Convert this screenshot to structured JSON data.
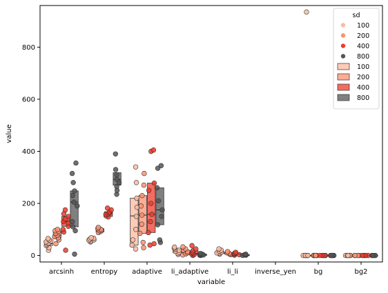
{
  "chart_data": {
    "type": "boxplot",
    "xlabel": "variable",
    "ylabel": "value",
    "ylim": [
      -25,
      960
    ],
    "yticks": [
      0,
      200,
      400,
      600,
      800
    ],
    "categories": [
      "arcsinh",
      "entropy",
      "adaptive",
      "li_adaptive",
      "li_li",
      "inverse_yen",
      "bg",
      "bg2"
    ],
    "hue_levels": [
      "100",
      "200",
      "400",
      "800"
    ],
    "colors": {
      "100": "#fcbba1",
      "200": "#fc9272",
      "400": "#ef3b2c",
      "800": "#555555"
    },
    "legend": {
      "title": "sd",
      "placement": "upper right",
      "point_entries": [
        "100",
        "200",
        "400",
        "800"
      ],
      "box_entries": [
        "100",
        "200",
        "400",
        "800"
      ]
    },
    "boxes": [
      {
        "category": "arcsinh",
        "hue": "100",
        "q1": 38,
        "median": 45,
        "q3": 55,
        "min": 20,
        "max": 65
      },
      {
        "category": "arcsinh",
        "hue": "200",
        "q1": 68,
        "median": 78,
        "q3": 92,
        "min": 45,
        "max": 100
      },
      {
        "category": "arcsinh",
        "hue": "400",
        "q1": 112,
        "median": 130,
        "q3": 150,
        "min": 90,
        "max": 175
      },
      {
        "category": "arcsinh",
        "hue": "800",
        "q1": 110,
        "median": 205,
        "q3": 248,
        "min": 5,
        "max": 355
      },
      {
        "category": "entropy",
        "hue": "100",
        "q1": 55,
        "median": 60,
        "q3": 66,
        "min": 52,
        "max": 68
      },
      {
        "category": "entropy",
        "hue": "200",
        "q1": 90,
        "median": 97,
        "q3": 103,
        "min": 88,
        "max": 108
      },
      {
        "category": "entropy",
        "hue": "400",
        "q1": 150,
        "median": 160,
        "q3": 168,
        "min": 148,
        "max": 182
      },
      {
        "category": "entropy",
        "hue": "800",
        "q1": 270,
        "median": 292,
        "q3": 318,
        "min": 235,
        "max": 390
      },
      {
        "category": "adaptive",
        "hue": "100",
        "q1": 40,
        "median": 152,
        "q3": 220,
        "min": 25,
        "max": 340
      },
      {
        "category": "adaptive",
        "hue": "200",
        "q1": 85,
        "median": 155,
        "q3": 230,
        "min": 30,
        "max": 315
      },
      {
        "category": "adaptive",
        "hue": "400",
        "q1": 88,
        "median": 158,
        "q3": 278,
        "min": 40,
        "max": 405
      },
      {
        "category": "adaptive",
        "hue": "800",
        "q1": 118,
        "median": 175,
        "q3": 260,
        "min": 50,
        "max": 345
      },
      {
        "category": "li_adaptive",
        "hue": "100",
        "q1": 10,
        "median": 16,
        "q3": 24,
        "min": 4,
        "max": 32
      },
      {
        "category": "li_adaptive",
        "hue": "200",
        "q1": 6,
        "median": 12,
        "q3": 20,
        "min": 2,
        "max": 33
      },
      {
        "category": "li_adaptive",
        "hue": "400",
        "q1": 3,
        "median": 8,
        "q3": 18,
        "min": 0,
        "max": 38
      },
      {
        "category": "li_adaptive",
        "hue": "800",
        "q1": 0,
        "median": 2,
        "q3": 5,
        "min": 0,
        "max": 8
      },
      {
        "category": "li_li",
        "hue": "100",
        "q1": 8,
        "median": 12,
        "q3": 16,
        "min": 5,
        "max": 25
      },
      {
        "category": "li_li",
        "hue": "200",
        "q1": 5,
        "median": 8,
        "q3": 11,
        "min": 3,
        "max": 15
      },
      {
        "category": "li_li",
        "hue": "400",
        "q1": 3,
        "median": 5,
        "q3": 8,
        "min": 1,
        "max": 12
      },
      {
        "category": "li_li",
        "hue": "800",
        "q1": 0,
        "median": 1,
        "q3": 3,
        "min": 0,
        "max": 5
      },
      {
        "category": "bg",
        "hue": "100",
        "q1": 0,
        "median": 0,
        "q3": 0,
        "min": 0,
        "max": 0
      },
      {
        "category": "bg",
        "hue": "200",
        "q1": 0,
        "median": 0,
        "q3": 0,
        "min": 0,
        "max": 0
      },
      {
        "category": "bg",
        "hue": "400",
        "q1": 0,
        "median": 0,
        "q3": 0,
        "min": 0,
        "max": 0
      },
      {
        "category": "bg",
        "hue": "800",
        "q1": 0,
        "median": 0,
        "q3": 0,
        "min": 0,
        "max": 0
      },
      {
        "category": "bg2",
        "hue": "100",
        "q1": 0,
        "median": 0,
        "q3": 0,
        "min": 0,
        "max": 0
      },
      {
        "category": "bg2",
        "hue": "200",
        "q1": 0,
        "median": 0,
        "q3": 0,
        "min": 0,
        "max": 0
      },
      {
        "category": "bg2",
        "hue": "400",
        "q1": 0,
        "median": 0,
        "q3": 0,
        "min": 0,
        "max": 0
      },
      {
        "category": "bg2",
        "hue": "800",
        "q1": 0,
        "median": 0,
        "q3": 0,
        "min": 0,
        "max": 0
      }
    ],
    "points": [
      {
        "category": "arcsinh",
        "hue": "100",
        "values": [
          20,
          30,
          38,
          42,
          45,
          48,
          52,
          55,
          60,
          65
        ]
      },
      {
        "category": "arcsinh",
        "hue": "200",
        "values": [
          45,
          60,
          68,
          72,
          78,
          85,
          92,
          95,
          100
        ]
      },
      {
        "category": "arcsinh",
        "hue": "400",
        "values": [
          20,
          90,
          100,
          112,
          125,
          130,
          140,
          150,
          160,
          175
        ]
      },
      {
        "category": "arcsinh",
        "hue": "800",
        "values": [
          5,
          95,
          110,
          130,
          190,
          205,
          230,
          248,
          280,
          315,
          355
        ]
      },
      {
        "category": "entropy",
        "hue": "100",
        "values": [
          52,
          55,
          58,
          60,
          63,
          66,
          68
        ]
      },
      {
        "category": "entropy",
        "hue": "200",
        "values": [
          88,
          92,
          95,
          97,
          100,
          103,
          108
        ]
      },
      {
        "category": "entropy",
        "hue": "400",
        "values": [
          148,
          152,
          158,
          160,
          163,
          168,
          175,
          182
        ]
      },
      {
        "category": "entropy",
        "hue": "800",
        "values": [
          235,
          250,
          265,
          280,
          292,
          310,
          330,
          390
        ]
      },
      {
        "category": "adaptive",
        "hue": "100",
        "values": [
          25,
          40,
          60,
          100,
          150,
          185,
          220,
          280,
          340
        ]
      },
      {
        "category": "adaptive",
        "hue": "200",
        "values": [
          30,
          50,
          85,
          120,
          155,
          190,
          230,
          270,
          315
        ]
      },
      {
        "category": "adaptive",
        "hue": "400",
        "values": [
          40,
          45,
          88,
          130,
          158,
          200,
          250,
          278,
          400,
          405
        ]
      },
      {
        "category": "adaptive",
        "hue": "800",
        "values": [
          50,
          60,
          118,
          150,
          175,
          210,
          260,
          335,
          345
        ]
      },
      {
        "category": "li_adaptive",
        "hue": "100",
        "values": [
          4,
          8,
          12,
          16,
          20,
          24,
          28,
          32
        ]
      },
      {
        "category": "li_adaptive",
        "hue": "200",
        "values": [
          2,
          6,
          10,
          14,
          20,
          25,
          33
        ]
      },
      {
        "category": "li_adaptive",
        "hue": "400",
        "values": [
          0,
          3,
          6,
          8,
          12,
          18,
          25,
          38
        ]
      },
      {
        "category": "li_adaptive",
        "hue": "800",
        "values": [
          0,
          1,
          2,
          3,
          5,
          8
        ]
      },
      {
        "category": "li_li",
        "hue": "100",
        "values": [
          5,
          8,
          10,
          12,
          16,
          20,
          25
        ]
      },
      {
        "category": "li_li",
        "hue": "200",
        "values": [
          3,
          5,
          8,
          10,
          15
        ]
      },
      {
        "category": "li_li",
        "hue": "400",
        "values": [
          1,
          3,
          5,
          7,
          10,
          12
        ]
      },
      {
        "category": "li_li",
        "hue": "800",
        "values": [
          0,
          1,
          2,
          3,
          5
        ]
      },
      {
        "category": "bg",
        "hue": "100",
        "values": [
          0,
          0,
          0,
          0,
          0,
          0,
          0,
          0,
          935
        ]
      },
      {
        "category": "bg",
        "hue": "200",
        "values": [
          0,
          0,
          0,
          0,
          0,
          0,
          0
        ]
      },
      {
        "category": "bg",
        "hue": "400",
        "values": [
          0,
          0,
          0,
          0,
          0,
          0,
          0
        ]
      },
      {
        "category": "bg",
        "hue": "800",
        "values": [
          0,
          0,
          0,
          0,
          0,
          0,
          0
        ]
      },
      {
        "category": "bg2",
        "hue": "100",
        "values": [
          0,
          0,
          0,
          0,
          0,
          0
        ]
      },
      {
        "category": "bg2",
        "hue": "200",
        "values": [
          0,
          0,
          0,
          0,
          0,
          0
        ]
      },
      {
        "category": "bg2",
        "hue": "400",
        "values": [
          0,
          0,
          0,
          0,
          0,
          0
        ]
      },
      {
        "category": "bg2",
        "hue": "800",
        "values": [
          0,
          0,
          0,
          0,
          0,
          0
        ]
      }
    ]
  }
}
